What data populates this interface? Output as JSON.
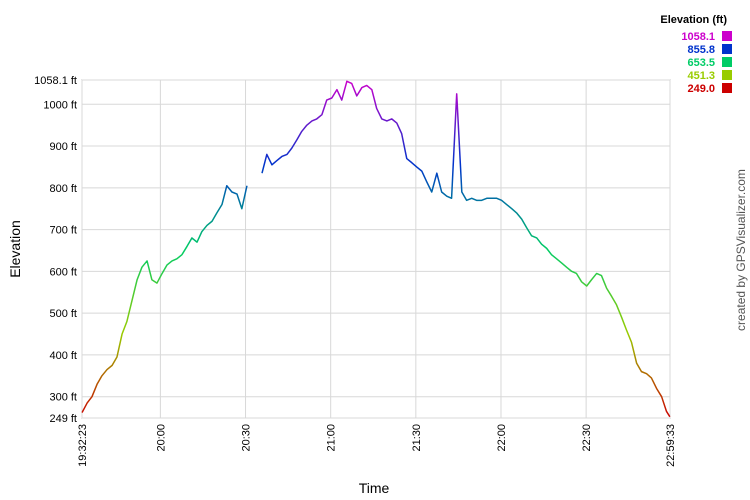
{
  "chart_data": {
    "type": "line",
    "legend_title": "Elevation (ft)",
    "y_label": "Elevation",
    "x_label": "Time",
    "credit": "created by GPSVisualizer.com",
    "color_scale": [
      {
        "value": 1058.1,
        "label": "1058.1",
        "color": "#cc00cc"
      },
      {
        "value": 855.8,
        "label": "855.8",
        "color": "#0033cc"
      },
      {
        "value": 653.5,
        "label": "653.5",
        "color": "#00cc66"
      },
      {
        "value": 451.3,
        "label": "451.3",
        "color": "#99cc00"
      },
      {
        "value": 249,
        "label": "249.0",
        "color": "#cc0000"
      }
    ],
    "xlim": [
      1172.383,
      1379.55
    ],
    "xticks": [
      {
        "value": 1172.383,
        "label": "19:32:23"
      },
      {
        "value": 1200,
        "label": "20:00"
      },
      {
        "value": 1230,
        "label": "20:30"
      },
      {
        "value": 1260,
        "label": "21:00"
      },
      {
        "value": 1290,
        "label": "21:30"
      },
      {
        "value": 1320,
        "label": "22:00"
      },
      {
        "value": 1350,
        "label": "22:30"
      },
      {
        "value": 1379.55,
        "label": "22:59:33"
      }
    ],
    "ylim": [
      249,
      1058.1
    ],
    "yticks": [
      {
        "value": 249,
        "label": "249 ft"
      },
      {
        "value": 300,
        "label": "300 ft"
      },
      {
        "value": 400,
        "label": "400 ft"
      },
      {
        "value": 500,
        "label": "500 ft"
      },
      {
        "value": 600,
        "label": "600 ft"
      },
      {
        "value": 700,
        "label": "700 ft"
      },
      {
        "value": 800,
        "label": "800 ft"
      },
      {
        "value": 900,
        "label": "900 ft"
      },
      {
        "value": 1000,
        "label": "1000 ft"
      },
      {
        "value": 1058.1,
        "label": "1058.1 ft"
      }
    ],
    "grid": true,
    "x": [
      1172.4,
      1174.2,
      1175.9,
      1177.7,
      1179.4,
      1181.2,
      1183.0,
      1184.7,
      1186.5,
      1188.2,
      1190.0,
      1191.8,
      1193.5,
      1195.3,
      1197.0,
      1198.8,
      1200.6,
      1202.3,
      1204.1,
      1205.8,
      1207.6,
      1209.4,
      1211.1,
      1212.9,
      1214.6,
      1216.4,
      1218.2,
      1219.9,
      1221.7,
      1223.4,
      1225.2,
      1227.0,
      1228.7,
      1230.5,
      1232.2,
      1235.8,
      1237.5,
      1239.3,
      1241.0,
      1242.8,
      1244.6,
      1246.3,
      1248.1,
      1249.8,
      1251.6,
      1253.4,
      1255.1,
      1256.9,
      1258.6,
      1260.4,
      1262.2,
      1263.9,
      1265.7,
      1267.4,
      1269.2,
      1271.0,
      1272.7,
      1274.5,
      1276.2,
      1278.0,
      1279.8,
      1281.5,
      1283.3,
      1285.0,
      1286.8,
      1288.6,
      1290.3,
      1292.1,
      1293.8,
      1295.6,
      1297.4,
      1299.1,
      1300.9,
      1302.6,
      1304.4,
      1306.2,
      1307.9,
      1309.7,
      1311.4,
      1313.2,
      1315.0,
      1316.7,
      1318.5,
      1320.2,
      1322.0,
      1323.8,
      1325.5,
      1327.3,
      1329.0,
      1330.8,
      1332.6,
      1334.3,
      1336.1,
      1337.8,
      1339.6,
      1341.4,
      1343.1,
      1344.9,
      1346.6,
      1348.4,
      1350.2,
      1351.9,
      1353.7,
      1355.4,
      1357.2,
      1359.0,
      1360.7,
      1362.5,
      1364.2,
      1366.0,
      1367.8,
      1369.5,
      1371.3,
      1373.0,
      1374.8,
      1376.6,
      1378.3,
      1379.5
    ],
    "values": [
      262,
      285,
      300,
      330,
      350,
      365,
      375,
      395,
      450,
      480,
      530,
      580,
      610,
      625,
      580,
      572,
      595,
      615,
      625,
      630,
      640,
      660,
      680,
      670,
      695,
      710,
      720,
      740,
      760,
      805,
      790,
      785,
      750,
      805,
      null,
      835,
      880,
      855,
      865,
      875,
      880,
      895,
      915,
      935,
      950,
      960,
      965,
      975,
      1010,
      1015,
      1035,
      1010,
      1055,
      1050,
      1020,
      1040,
      1045,
      1035,
      990,
      965,
      960,
      965,
      955,
      930,
      870,
      860,
      850,
      840,
      815,
      790,
      835,
      790,
      780,
      775,
      1025,
      790,
      770,
      775,
      770,
      770,
      775,
      775,
      775,
      770,
      760,
      750,
      740,
      725,
      705,
      685,
      680,
      665,
      655,
      640,
      630,
      620,
      610,
      600,
      595,
      575,
      565,
      580,
      595,
      590,
      560,
      540,
      520,
      490,
      460,
      430,
      380,
      360,
      355,
      345,
      320,
      300,
      265,
      252
    ]
  }
}
